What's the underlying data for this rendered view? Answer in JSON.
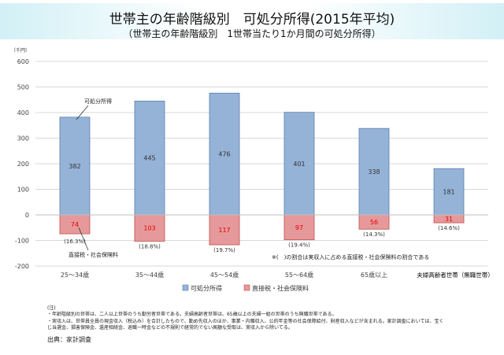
{
  "header": {
    "title": "世帯主の年齢階級別　可処分所得(2015年平均)",
    "subtitle": "（世帯主の年齢階級別　1世帯当たり1か月間の可処分所得）"
  },
  "chart_data": {
    "type": "bar",
    "stacked": true,
    "unit_label": "（千円）",
    "categories": [
      "25～34歳",
      "35～44歳",
      "45～54歳",
      "55～64歳",
      "65歳以上",
      "夫婦高齢者世帯（無職世帯）"
    ],
    "series": [
      {
        "name": "可処分所得",
        "color": "#95b3d7",
        "values": [
          382,
          445,
          476,
          401,
          338,
          181
        ]
      },
      {
        "name": "直接税・社会保険料",
        "color": "#e6999a",
        "values": [
          -74,
          -103,
          -117,
          -97,
          -56,
          -31
        ],
        "labels": [
          "74",
          "103",
          "117",
          "97",
          "56",
          "31"
        ],
        "percent_labels": [
          "(16.3%)",
          "(18.8%)",
          "(19.7%)",
          "(19.4%)",
          "(14.3%)",
          "(14.6%)"
        ]
      }
    ],
    "ylim": [
      -200,
      600
    ],
    "yticks": [
      600,
      500,
      400,
      300,
      200,
      100,
      0,
      -100,
      -200
    ],
    "grid": true,
    "legend": "bottom",
    "annotations": {
      "disposable": "可処分所得",
      "tax": "直接税・社会保険料",
      "footnote": "※(　)の割合は実収入に占める直接税・社会保険料の割合である"
    }
  },
  "notes": {
    "head": "(注)",
    "line1": "・年齢階級別の世帯は、二人以上世帯のうち勤労者世帯である。夫婦高齢者世帯は、65歳以上の夫婦一組の世帯のうち無職世帯である。",
    "line2": "・実収入は、世帯員全員の現金収入（税込み）を合計したもので、勤め先収入のほか、事業・内職収入、公的年金等の社会保障給付、財産収入などが含まれる。家計調査においては、宝く",
    "line3": "じ当選金、損害保険金、遺産相続金、退職一時金などの不規則で経常的でない高額な受取は、実収入から除いてる。",
    "source": "出典：家計調査"
  }
}
